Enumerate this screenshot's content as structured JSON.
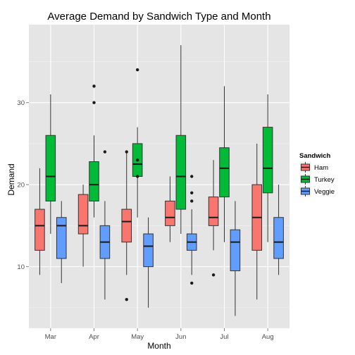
{
  "chart_data": {
    "type": "boxplot",
    "title": "Average Demand by Sandwich Type and Month",
    "xlabel": "Month",
    "ylabel": "Demand",
    "ylim": [
      2.5,
      39.5
    ],
    "yticks": [
      10,
      20,
      30
    ],
    "categories": [
      "Mar",
      "Apr",
      "May",
      "Jun",
      "Jul",
      "Aug"
    ],
    "legend": {
      "title": "Sandwich",
      "position": "right"
    },
    "grid": true,
    "series": [
      {
        "name": "Ham",
        "color": "#f8766d",
        "boxes": [
          {
            "whisker_low": 9,
            "q1": 12,
            "median": 15,
            "q3": 17,
            "whisker_high": 22,
            "outliers": []
          },
          {
            "whisker_low": 10,
            "q1": 14,
            "median": 15,
            "q3": 18.8,
            "whisker_high": 20,
            "outliers": []
          },
          {
            "whisker_low": 9,
            "q1": 13,
            "median": 15.5,
            "q3": 17,
            "whisker_high": 24,
            "outliers": [
              6,
              24
            ]
          },
          {
            "whisker_low": 13,
            "q1": 15,
            "median": 16,
            "q3": 18,
            "whisker_high": 21,
            "outliers": []
          },
          {
            "whisker_low": 12,
            "q1": 15,
            "median": 16,
            "q3": 18.5,
            "whisker_high": 23,
            "outliers": [
              9
            ]
          },
          {
            "whisker_low": 6,
            "q1": 12,
            "median": 16,
            "q3": 20,
            "whisker_high": 25,
            "outliers": []
          }
        ]
      },
      {
        "name": "Turkey",
        "color": "#00ba38",
        "boxes": [
          {
            "whisker_low": 14,
            "q1": 18,
            "median": 21,
            "q3": 26,
            "whisker_high": 31,
            "outliers": []
          },
          {
            "whisker_low": 16,
            "q1": 18,
            "median": 20,
            "q3": 22.8,
            "whisker_high": 26,
            "outliers": [
              30,
              32
            ]
          },
          {
            "whisker_low": 16,
            "q1": 21,
            "median": 22.5,
            "q3": 25,
            "whisker_high": 27,
            "outliers": [
              21,
              23,
              34
            ]
          },
          {
            "whisker_low": 14,
            "q1": 17,
            "median": 21,
            "q3": 26,
            "whisker_high": 37,
            "outliers": []
          },
          {
            "whisker_low": 13,
            "q1": 18.5,
            "median": 22,
            "q3": 24.5,
            "whisker_high": 32,
            "outliers": []
          },
          {
            "whisker_low": 13,
            "q1": 19,
            "median": 22,
            "q3": 27,
            "whisker_high": 31,
            "outliers": []
          }
        ]
      },
      {
        "name": "Veggie",
        "color": "#619cff",
        "boxes": [
          {
            "whisker_low": 8,
            "q1": 11,
            "median": 15,
            "q3": 16,
            "whisker_high": 18,
            "outliers": []
          },
          {
            "whisker_low": 6,
            "q1": 11,
            "median": 13,
            "q3": 15,
            "whisker_high": 18,
            "outliers": [
              24
            ]
          },
          {
            "whisker_low": 5,
            "q1": 10,
            "median": 12.5,
            "q3": 14,
            "whisker_high": 16,
            "outliers": []
          },
          {
            "whisker_low": 9,
            "q1": 12,
            "median": 13,
            "q3": 14,
            "whisker_high": 17,
            "outliers": [
              8,
              18,
              19,
              21
            ]
          },
          {
            "whisker_low": 4,
            "q1": 9.5,
            "median": 13,
            "q3": 14.5,
            "whisker_high": 18,
            "outliers": []
          },
          {
            "whisker_low": 9,
            "q1": 11,
            "median": 13,
            "q3": 16,
            "whisker_high": 20,
            "outliers": []
          }
        ]
      }
    ]
  }
}
